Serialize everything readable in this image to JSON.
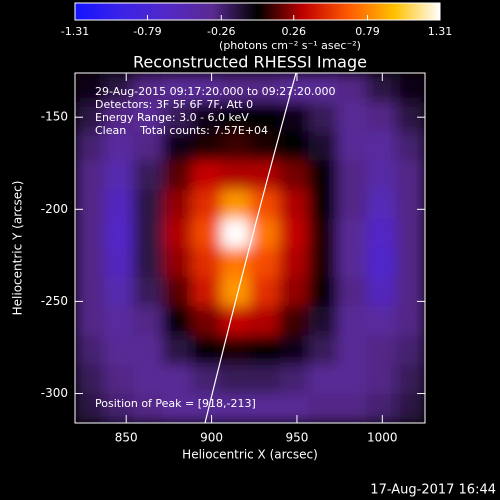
{
  "chart_data": {
    "type": "heatmap",
    "title": "Reconstructed RHESSI Image",
    "colorbar_label": "(photons cm⁻² s⁻¹ asec⁻²)",
    "clim": [
      -1.31,
      1.31
    ],
    "cticks": [
      -1.31,
      -0.79,
      -0.26,
      0.26,
      0.79,
      1.31
    ],
    "colormap": [
      "#1414ff",
      "#3a22e8",
      "#5228c8",
      "#5a2a92",
      "#000000",
      "#c00000",
      "#ff5a00",
      "#ffc000",
      "#ffffff"
    ],
    "xlabel": "Heliocentric X (arcsec)",
    "ylabel": "Heliocentric Y (arcsec)",
    "xlim": [
      820,
      1025
    ],
    "ylim": [
      -316,
      -126
    ],
    "xticks": [
      850,
      900,
      950,
      1000
    ],
    "yticks": [
      -150,
      -200,
      -250,
      -300
    ],
    "annotations": [
      "29-Aug-2015 09:17:20.000 to 09:27:20.000",
      "Detectors: 3F 5F 6F 7F, Att 0",
      "Energy Range: 3.0 - 6.0 keV",
      "Clean    Total counts: 7.57E+04"
    ],
    "peak_label": "Position of Peak = [918,-213]",
    "timestamp": "17-Aug-2017 16:44",
    "z": [
      [
        -0.05,
        -0.15,
        -0.3,
        -0.35,
        -0.35,
        -0.3,
        -0.3,
        -0.35,
        -0.35,
        -0.3,
        -0.15,
        -0.05
      ],
      [
        -0.15,
        -0.3,
        -0.35,
        -0.2,
        -0.05,
        0.0,
        0.0,
        -0.05,
        -0.2,
        -0.35,
        -0.3,
        -0.15
      ],
      [
        -0.25,
        -0.4,
        -0.3,
        -0.05,
        0.05,
        0.1,
        0.05,
        0.0,
        -0.1,
        -0.35,
        -0.4,
        -0.25
      ],
      [
        -0.3,
        -0.5,
        -0.2,
        0.15,
        0.35,
        0.3,
        0.3,
        0.2,
        0.0,
        -0.3,
        -0.45,
        -0.3
      ],
      [
        -0.3,
        -0.6,
        -0.15,
        0.25,
        0.5,
        0.85,
        0.6,
        0.3,
        0.0,
        -0.3,
        -0.55,
        -0.3
      ],
      [
        -0.3,
        -0.65,
        -0.15,
        0.3,
        0.6,
        1.31,
        0.75,
        0.35,
        0.05,
        -0.35,
        -0.65,
        -0.3
      ],
      [
        -0.3,
        -0.6,
        -0.15,
        0.25,
        0.5,
        0.75,
        0.6,
        0.3,
        0.05,
        -0.35,
        -0.7,
        -0.3
      ],
      [
        -0.3,
        -0.5,
        -0.2,
        0.15,
        0.4,
        0.85,
        0.5,
        0.25,
        0.0,
        -0.3,
        -0.6,
        -0.3
      ],
      [
        -0.3,
        -0.4,
        -0.3,
        0.0,
        0.2,
        0.35,
        0.3,
        0.1,
        -0.1,
        -0.35,
        -0.4,
        -0.3
      ],
      [
        -0.25,
        -0.35,
        -0.35,
        -0.15,
        0.0,
        0.05,
        0.0,
        -0.05,
        -0.2,
        -0.35,
        -0.3,
        -0.25
      ],
      [
        -0.2,
        -0.3,
        -0.35,
        -0.35,
        -0.25,
        -0.2,
        -0.2,
        -0.25,
        -0.35,
        -0.35,
        -0.3,
        -0.2
      ],
      [
        -0.15,
        -0.25,
        -0.3,
        -0.35,
        -0.35,
        -0.35,
        -0.35,
        -0.35,
        -0.3,
        -0.3,
        -0.25,
        -0.15
      ]
    ]
  }
}
